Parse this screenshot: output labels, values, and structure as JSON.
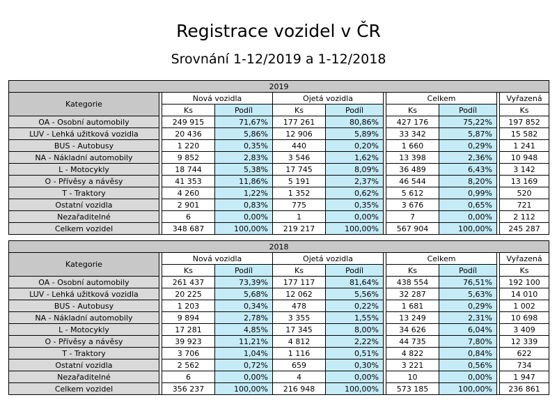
{
  "title": "Registrace vozidel v ČR",
  "subtitle": "Srovnání 1-12/2019 a 1-12/2018",
  "headers": {
    "kategorie": "Kategorie",
    "nova": "Nová vozidla",
    "ojeta": "Ojetá vozidla",
    "celkem": "Celkem",
    "vyrazena": "Vyřazená",
    "ks": "Ks",
    "podil": "Podíl"
  },
  "tables": [
    {
      "year": "2019",
      "rows": [
        {
          "cat": "OA - Osobní automobily",
          "n_ks": "249 915",
          "n_p": "71,67%",
          "o_ks": "177 261",
          "o_p": "80,86%",
          "c_ks": "427 176",
          "c_p": "75,22%",
          "v_ks": "197 852"
        },
        {
          "cat": "LUV - Lehká užitková vozidla",
          "n_ks": "20 436",
          "n_p": "5,86%",
          "o_ks": "12 906",
          "o_p": "5,89%",
          "c_ks": "33 342",
          "c_p": "5,87%",
          "v_ks": "15 582"
        },
        {
          "cat": "BUS - Autobusy",
          "n_ks": "1 220",
          "n_p": "0,35%",
          "o_ks": "440",
          "o_p": "0,20%",
          "c_ks": "1 660",
          "c_p": "0,29%",
          "v_ks": "1 241"
        },
        {
          "cat": "NA - Nákladní automobily",
          "n_ks": "9 852",
          "n_p": "2,83%",
          "o_ks": "3 546",
          "o_p": "1,62%",
          "c_ks": "13 398",
          "c_p": "2,36%",
          "v_ks": "10 948"
        },
        {
          "cat": "L - Motocykly",
          "n_ks": "18 744",
          "n_p": "5,38%",
          "o_ks": "17 745",
          "o_p": "8,09%",
          "c_ks": "36 489",
          "c_p": "6,43%",
          "v_ks": "3 142"
        },
        {
          "cat": "O - Přívěsy a návěsy",
          "n_ks": "41 353",
          "n_p": "11,86%",
          "o_ks": "5 191",
          "o_p": "2,37%",
          "c_ks": "46 544",
          "c_p": "8,20%",
          "v_ks": "13 169"
        },
        {
          "cat": "T - Traktory",
          "n_ks": "4 260",
          "n_p": "1,22%",
          "o_ks": "1 352",
          "o_p": "0,62%",
          "c_ks": "5 612",
          "c_p": "0,99%",
          "v_ks": "520"
        },
        {
          "cat": "Ostatní vozidla",
          "n_ks": "2 901",
          "n_p": "0,83%",
          "o_ks": "775",
          "o_p": "0,35%",
          "c_ks": "3 676",
          "c_p": "0,65%",
          "v_ks": "721"
        },
        {
          "cat": "Nezařaditelné",
          "n_ks": "6",
          "n_p": "0,00%",
          "o_ks": "1",
          "o_p": "0,00%",
          "c_ks": "7",
          "c_p": "0,00%",
          "v_ks": "2 112"
        },
        {
          "cat": "Celkem vozidel",
          "n_ks": "348 687",
          "n_p": "100,00%",
          "o_ks": "219 217",
          "o_p": "100,00%",
          "c_ks": "567 904",
          "c_p": "100,00%",
          "v_ks": "245 287"
        }
      ]
    },
    {
      "year": "2018",
      "rows": [
        {
          "cat": "OA - Osobní automobily",
          "n_ks": "261 437",
          "n_p": "73,39%",
          "o_ks": "177 117",
          "o_p": "81,64%",
          "c_ks": "438 554",
          "c_p": "76,51%",
          "v_ks": "192 100"
        },
        {
          "cat": "LUV - Lehká užitková vozidla",
          "n_ks": "20 225",
          "n_p": "5,68%",
          "o_ks": "12 062",
          "o_p": "5,56%",
          "c_ks": "32 287",
          "c_p": "5,63%",
          "v_ks": "14 010"
        },
        {
          "cat": "BUS - Autobusy",
          "n_ks": "1 203",
          "n_p": "0,34%",
          "o_ks": "478",
          "o_p": "0,22%",
          "c_ks": "1 681",
          "c_p": "0,29%",
          "v_ks": "1 002"
        },
        {
          "cat": "NA - Nákladní automobily",
          "n_ks": "9 894",
          "n_p": "2,78%",
          "o_ks": "3 355",
          "o_p": "1,55%",
          "c_ks": "13 249",
          "c_p": "2,31%",
          "v_ks": "10 698"
        },
        {
          "cat": "L - Motocykly",
          "n_ks": "17 281",
          "n_p": "4,85%",
          "o_ks": "17 345",
          "o_p": "8,00%",
          "c_ks": "34 626",
          "c_p": "6,04%",
          "v_ks": "3 409"
        },
        {
          "cat": "O - Přívěsy a návěsy",
          "n_ks": "39 923",
          "n_p": "11,21%",
          "o_ks": "4 812",
          "o_p": "2,22%",
          "c_ks": "44 735",
          "c_p": "7,80%",
          "v_ks": "12 339"
        },
        {
          "cat": "T - Traktory",
          "n_ks": "3 706",
          "n_p": "1,04%",
          "o_ks": "1 116",
          "o_p": "0,51%",
          "c_ks": "4 822",
          "c_p": "0,84%",
          "v_ks": "622"
        },
        {
          "cat": "Ostatní vozidla",
          "n_ks": "2 562",
          "n_p": "0,72%",
          "o_ks": "659",
          "o_p": "0,30%",
          "c_ks": "3 221",
          "c_p": "0,56%",
          "v_ks": "734"
        },
        {
          "cat": "Nezařaditelné",
          "n_ks": "6",
          "n_p": "0,00%",
          "o_ks": "4",
          "o_p": "0,00%",
          "c_ks": "10",
          "c_p": "0,00%",
          "v_ks": "1 947"
        },
        {
          "cat": "Celkem vozidel",
          "n_ks": "356 237",
          "n_p": "100,00%",
          "o_ks": "216 948",
          "o_p": "100,00%",
          "c_ks": "573 185",
          "c_p": "100,00%",
          "v_ks": "236 861"
        }
      ]
    }
  ],
  "colors": {
    "header_gray": "#c8c8c8",
    "category_gray": "#d9d9d9",
    "percent_blue": "#c5ebf7"
  }
}
